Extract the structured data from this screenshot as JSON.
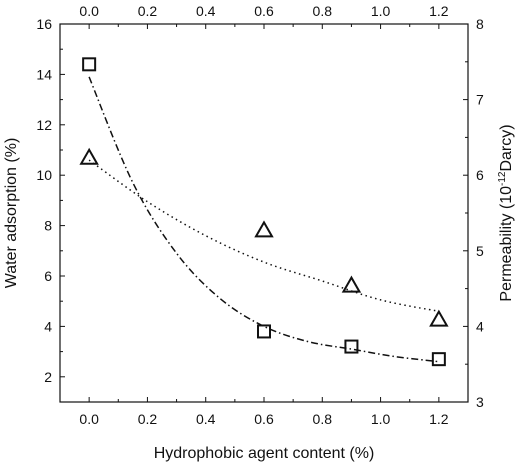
{
  "chart_data": {
    "type": "scatter",
    "xlabel": "Hydrophobic agent content (%)",
    "ylabel_left": "Water adsorption (%)",
    "ylabel_right": {
      "prefix": "Permeability (10",
      "exponent": "-12",
      "suffix": "Darcy)"
    },
    "xlim": [
      -0.1,
      1.3
    ],
    "ylim_left": [
      1,
      16
    ],
    "ylim_right": [
      3,
      8
    ],
    "x_ticks": [
      "0.0",
      "0.2",
      "0.4",
      "0.6",
      "0.8",
      "1.0",
      "1.2"
    ],
    "y_left_ticks": [
      "2",
      "4",
      "6",
      "8",
      "10",
      "12",
      "14",
      "16"
    ],
    "y_right_ticks": [
      "3",
      "4",
      "5",
      "6",
      "7",
      "8"
    ],
    "grid": false,
    "legend": "none",
    "series": [
      {
        "axis": "left",
        "marker": "square",
        "line_style": "dash-dot",
        "x": [
          0.0,
          0.6,
          0.9,
          1.2
        ],
        "y": [
          14.4,
          3.8,
          3.2,
          2.7
        ],
        "trend": [
          [
            0.0,
            13.9
          ],
          [
            0.15,
            9.7
          ],
          [
            0.3,
            6.9
          ],
          [
            0.45,
            5.1
          ],
          [
            0.6,
            4.0
          ],
          [
            0.75,
            3.4
          ],
          [
            0.9,
            3.1
          ],
          [
            1.05,
            2.8
          ],
          [
            1.2,
            2.6
          ]
        ]
      },
      {
        "axis": "right",
        "marker": "triangle",
        "line_style": "dotted",
        "x": [
          0.0,
          0.6,
          0.9,
          1.2
        ],
        "y": [
          6.23,
          5.27,
          4.54,
          4.09
        ],
        "trend": [
          [
            0.0,
            6.2
          ],
          [
            0.2,
            5.65
          ],
          [
            0.4,
            5.2
          ],
          [
            0.6,
            4.85
          ],
          [
            0.8,
            4.6
          ],
          [
            1.0,
            4.35
          ],
          [
            1.2,
            4.2
          ]
        ]
      }
    ]
  }
}
